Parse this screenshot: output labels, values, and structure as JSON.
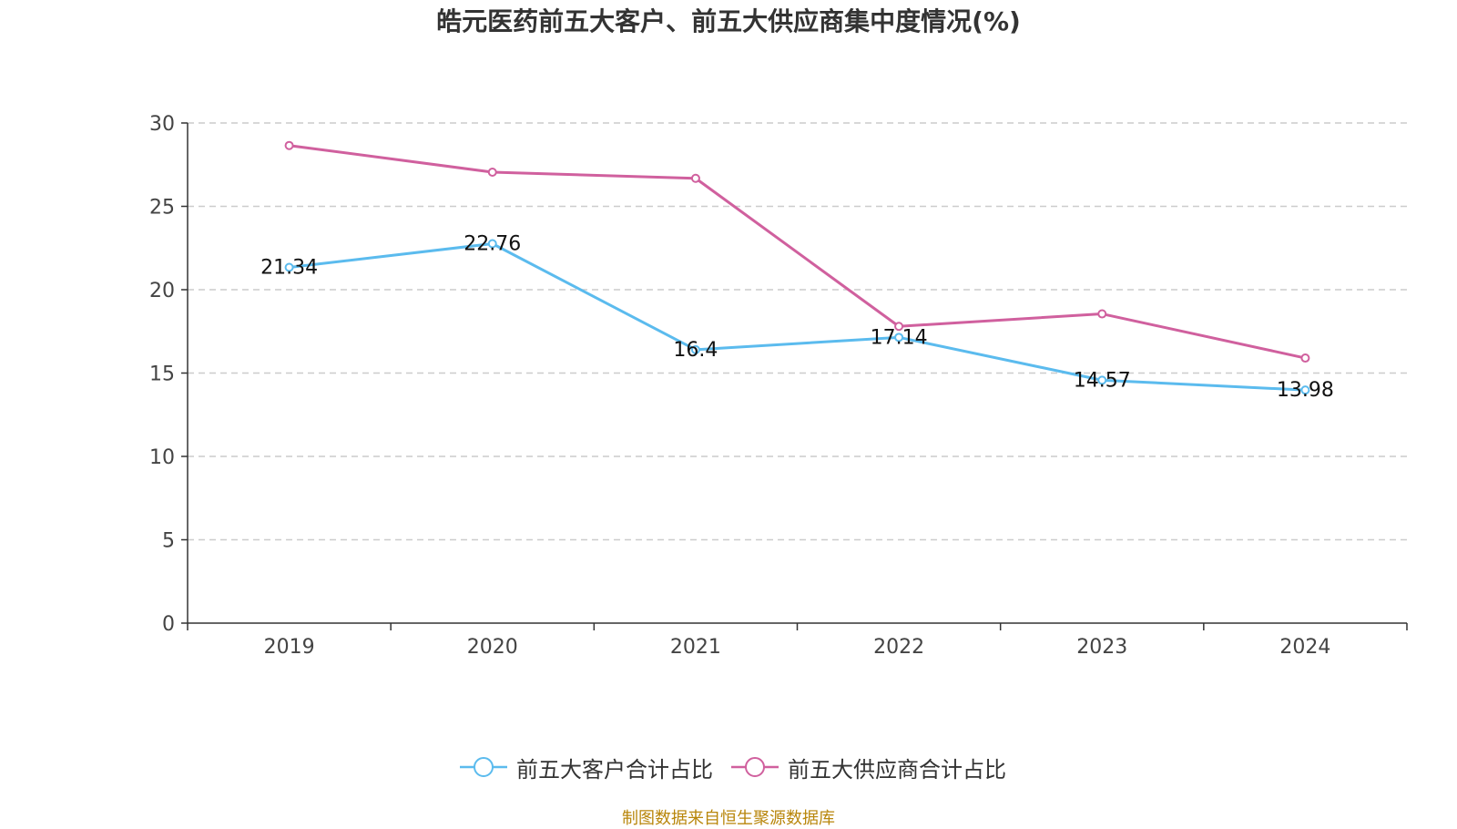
{
  "title": "皓元医药前五大客户、前五大供应商集中度情况(%)",
  "source": "制图数据来自恒生聚源数据库",
  "colors": {
    "customers": "#5bbbee",
    "suppliers": "#d0609e",
    "grid": "#cccccc",
    "axis": "#333333"
  },
  "chart_data": {
    "type": "line",
    "title": "皓元医药前五大客户、前五大供应商集中度情况(%)",
    "xlabel": "",
    "ylabel": "",
    "categories": [
      "2019",
      "2020",
      "2021",
      "2022",
      "2023",
      "2024"
    ],
    "ylim": [
      0,
      30
    ],
    "yticks": [
      0,
      5,
      10,
      15,
      20,
      25,
      30
    ],
    "grid": true,
    "legend_position": "bottom-center",
    "series": [
      {
        "name": "前五大客户合计占比",
        "values": [
          21.34,
          22.76,
          16.4,
          17.14,
          14.57,
          13.98
        ],
        "labels": true
      },
      {
        "name": "前五大供应商合计占比",
        "values": [
          28.65,
          27.05,
          26.68,
          17.8,
          18.55,
          15.9
        ],
        "labels": false
      }
    ]
  }
}
